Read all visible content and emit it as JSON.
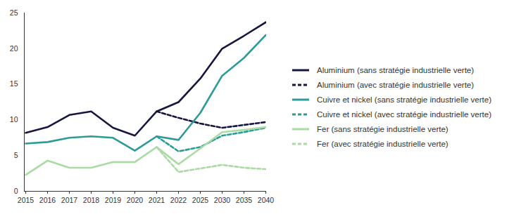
{
  "chart_data": {
    "type": "line",
    "categories": [
      "2015",
      "2016",
      "2017",
      "2018",
      "2019",
      "2020",
      "2021",
      "2022",
      "2025",
      "2030",
      "2035",
      "2040"
    ],
    "series": [
      {
        "name": "Aluminium (sans stratégie industrielle verte)",
        "color": "#16163f",
        "line_style": "solid",
        "values": [
          8.2,
          9.0,
          10.7,
          11.2,
          8.9,
          7.8,
          11.2,
          12.5,
          15.8,
          20.0,
          21.8,
          23.7
        ]
      },
      {
        "name": "Aluminium (avec stratégie industrielle verte)",
        "color": "#16163f",
        "line_style": "dashed",
        "values": [
          null,
          null,
          null,
          null,
          null,
          null,
          11.2,
          10.3,
          9.5,
          8.9,
          9.3,
          9.7
        ]
      },
      {
        "name": "Cuivre et nickel (sans stratégie industrielle verte)",
        "color": "#2e9c96",
        "line_style": "solid",
        "values": [
          6.7,
          6.9,
          7.5,
          7.7,
          7.5,
          5.7,
          7.7,
          7.2,
          11.0,
          16.2,
          18.7,
          21.9
        ]
      },
      {
        "name": "Cuivre et nickel (avec stratégie industrielle verte)",
        "color": "#2e9c96",
        "line_style": "dashed",
        "values": [
          null,
          null,
          null,
          null,
          null,
          null,
          7.7,
          5.6,
          6.2,
          7.8,
          8.3,
          8.9
        ]
      },
      {
        "name": "Fer (sans stratégie industrielle verte)",
        "color": "#a9dba3",
        "line_style": "solid",
        "values": [
          2.3,
          4.3,
          3.3,
          3.3,
          4.1,
          4.1,
          6.2,
          3.8,
          6.0,
          8.3,
          8.6,
          9.0
        ]
      },
      {
        "name": "Fer (avec stratégie industrielle verte)",
        "color": "#a9dba3",
        "line_style": "dashed",
        "values": [
          null,
          null,
          null,
          null,
          null,
          null,
          6.2,
          2.7,
          3.2,
          3.7,
          3.3,
          3.1
        ]
      }
    ],
    "ylim": [
      0,
      25
    ],
    "yticks": [
      0,
      5,
      10,
      15,
      20,
      25
    ],
    "grid": false,
    "legend": "right"
  }
}
